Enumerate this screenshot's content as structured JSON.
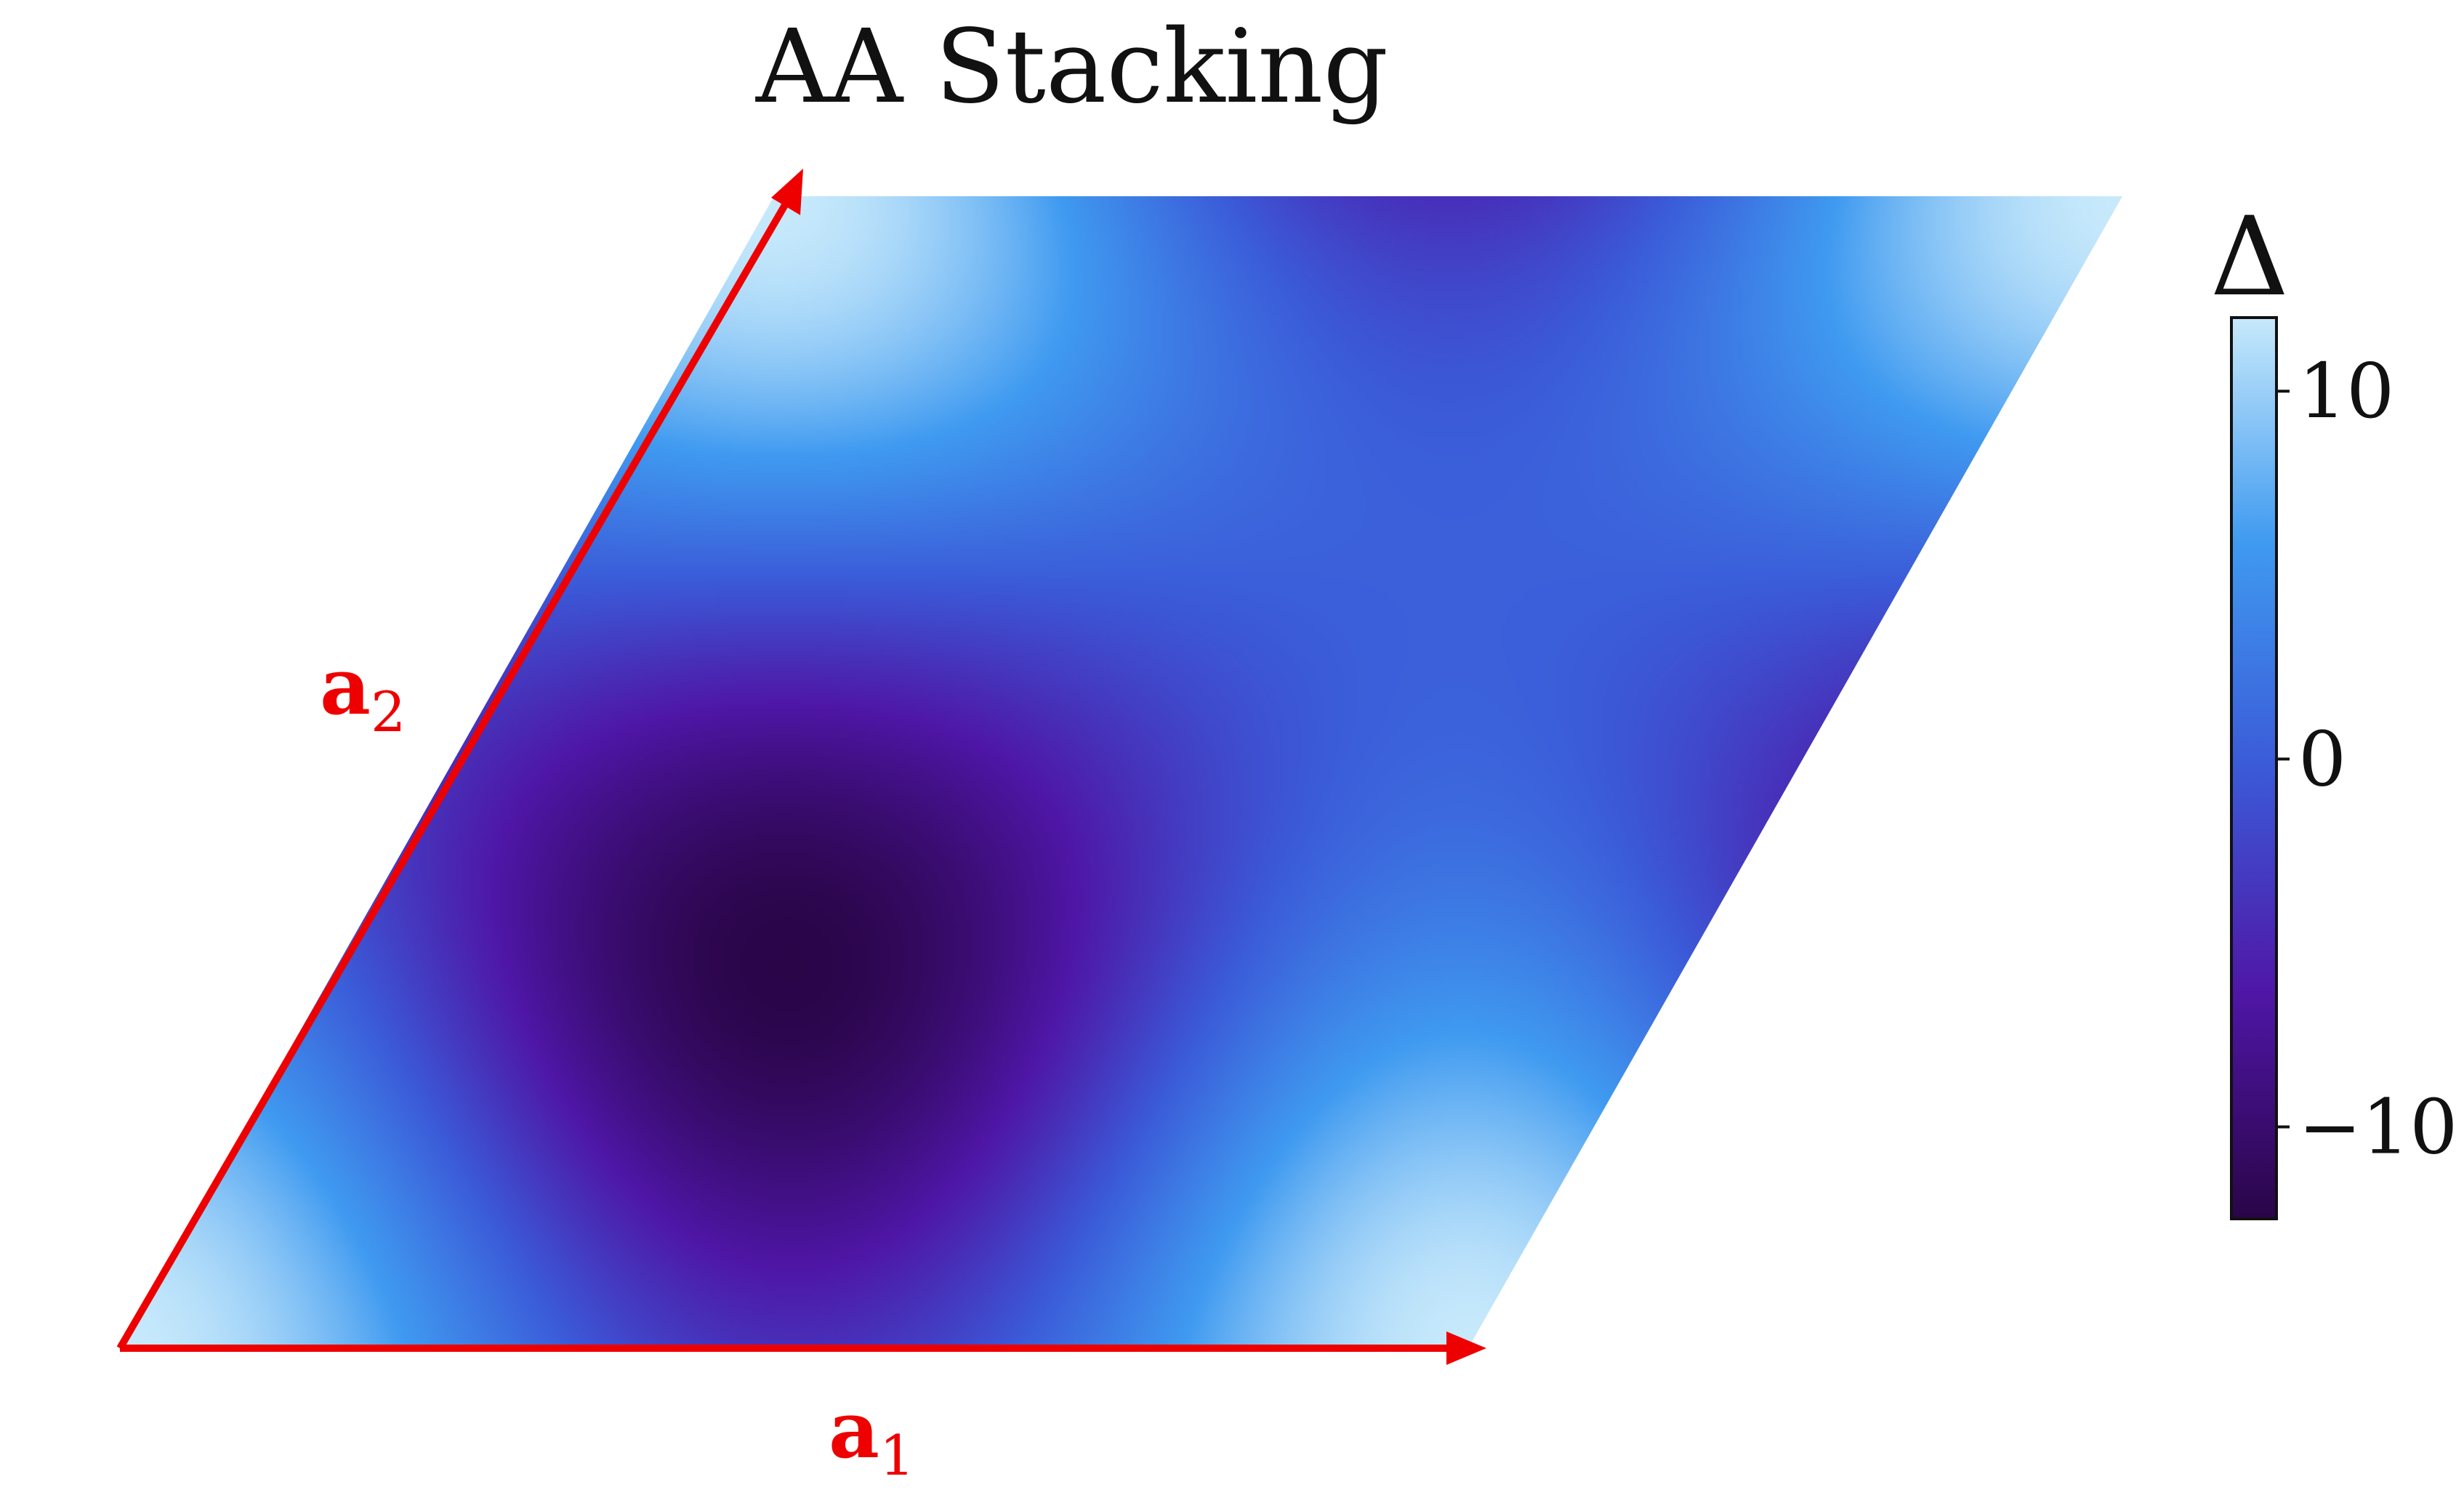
{
  "chart_data": {
    "type": "heatmap",
    "title": "AA Stacking",
    "colorbar": {
      "label": "Δ",
      "range": [
        -12.5,
        12
      ],
      "ticks": [
        {
          "value": 10,
          "label": "10"
        },
        {
          "value": 0,
          "label": "0"
        },
        {
          "value": -10,
          "label": "−10"
        }
      ],
      "colors": [
        "#2a0548",
        "#4f16a6",
        "#3b5ad8",
        "#3f9af0",
        "#c7e9fb"
      ]
    },
    "vectors": [
      {
        "name": "a1",
        "label": "a",
        "subscript": "1",
        "color": "#ee0000"
      },
      {
        "name": "a2",
        "label": "a",
        "subscript": "2",
        "color": "#ee0000"
      }
    ],
    "field": {
      "description_of_visible_features": "moire potential over a rhombic unit cell",
      "minimum_value": -12.5,
      "maximum_value": 12
    }
  }
}
